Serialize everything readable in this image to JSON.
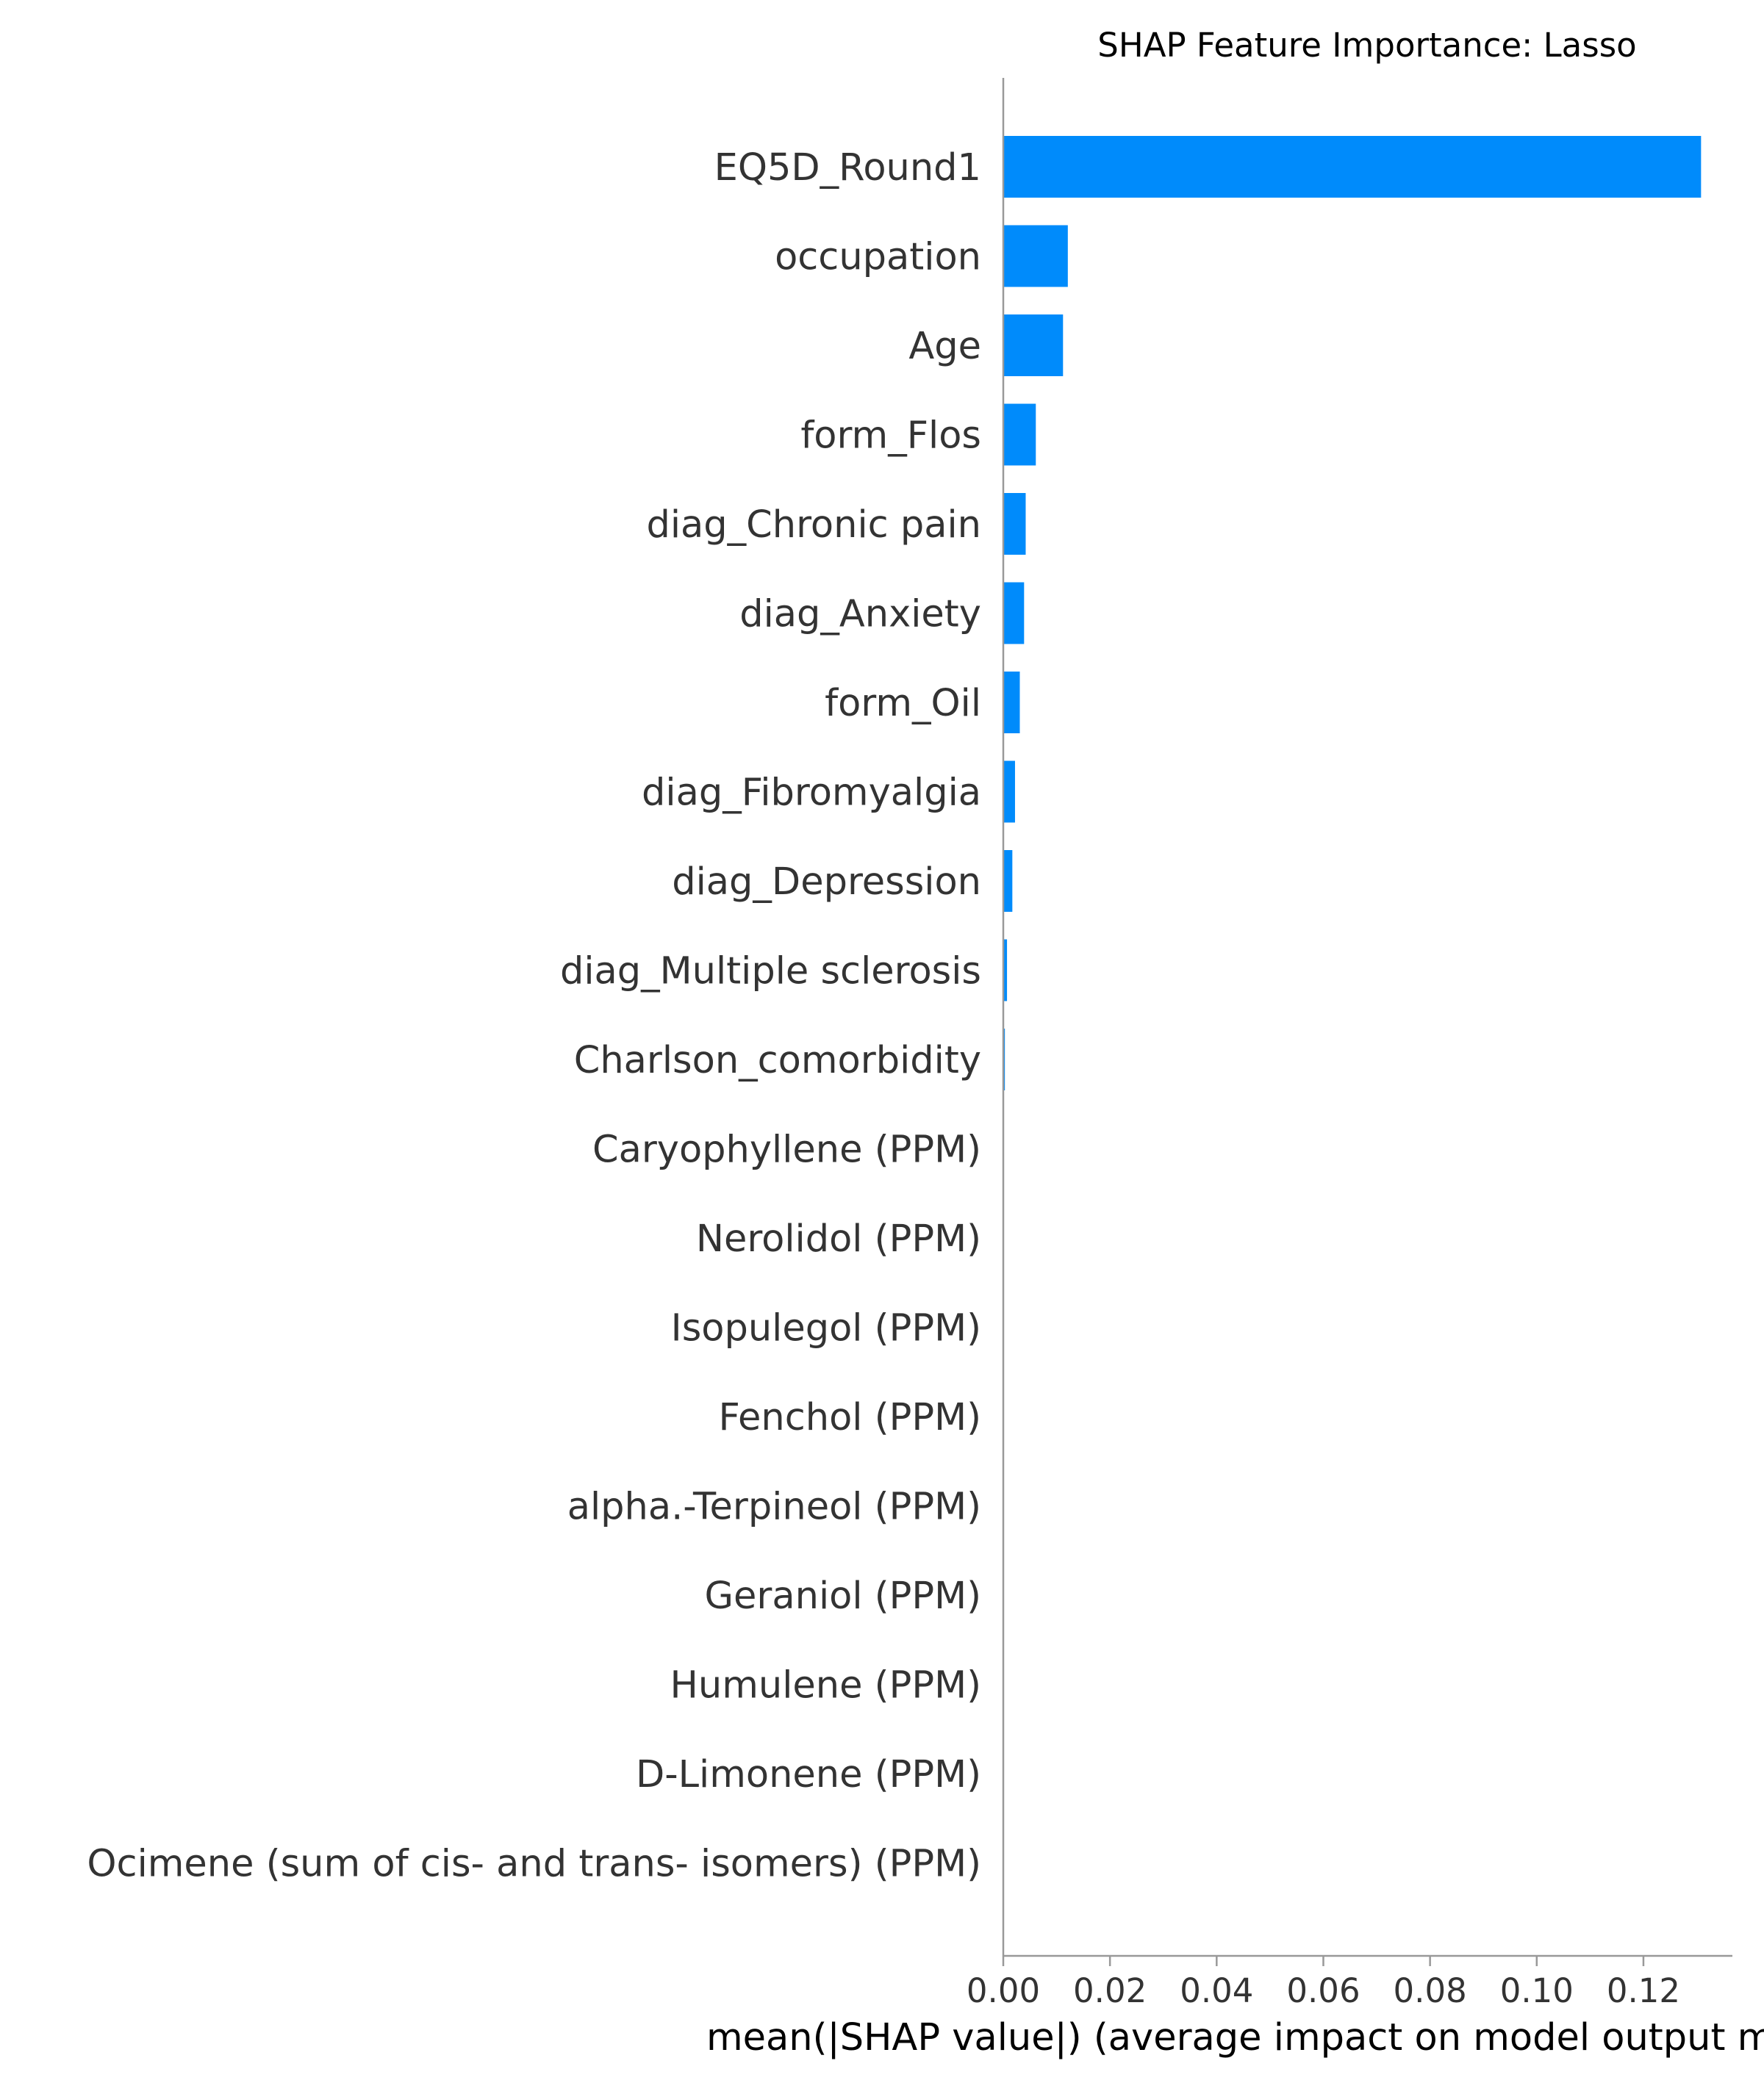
{
  "chart_data": {
    "type": "bar",
    "orientation": "horizontal",
    "title": "SHAP Feature Importance: Lasso",
    "xlabel": "mean(|SHAP value|) (average impact on model output magnitude)",
    "ylabel": "",
    "xlim": [
      0,
      0.137
    ],
    "xticks": [
      "0.00",
      "0.02",
      "0.04",
      "0.06",
      "0.08",
      "0.10",
      "0.12"
    ],
    "grid": false,
    "categories": [
      "EQ5D_Round1",
      "occupation",
      "Age",
      "form_Flos",
      "diag_Chronic pain",
      "diag_Anxiety",
      "form_Oil",
      "diag_Fibromyalgia",
      "diag_Depression",
      "diag_Multiple sclerosis",
      "Charlson_comorbidity",
      "Caryophyllene (PPM)",
      "Nerolidol (PPM)",
      "Isopulegol (PPM)",
      "Fenchol (PPM)",
      "alpha.-Terpineol (PPM)",
      "Geraniol (PPM)",
      "Humulene (PPM)",
      "D-Limonene (PPM)",
      "Ocimene (sum of cis- and trans- isomers) (PPM)"
    ],
    "values": [
      0.1308,
      0.0121,
      0.0112,
      0.0061,
      0.0042,
      0.0039,
      0.0031,
      0.0022,
      0.0017,
      0.0007,
      0.0003,
      0,
      0,
      0,
      0,
      0,
      0,
      0,
      0,
      0
    ],
    "colors": {
      "bar": "#008bfb",
      "axis": "#999999",
      "label": "#333333"
    }
  }
}
